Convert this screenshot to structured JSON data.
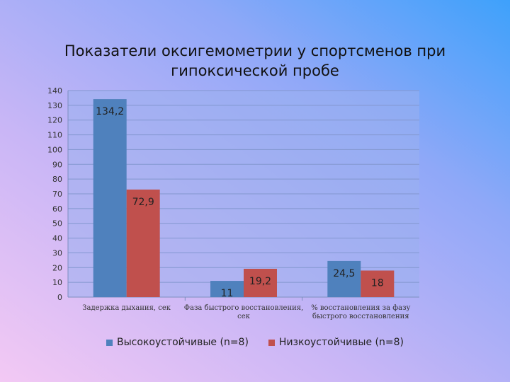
{
  "title_lines": [
    "Показатели оксигемометрии у спортсменов при",
    "гипоксической пробе"
  ],
  "colors": {
    "series1": "#4f81bd",
    "series2": "#c0504d",
    "plot_bg": "#9ab0ee",
    "grid": "#8397cf"
  },
  "chart_data": {
    "type": "bar",
    "title": "Показатели оксигемометрии у спортсменов при гипоксической пробе",
    "categories": [
      [
        "Задержка дыхания, сек"
      ],
      [
        "Фаза быстрого восстановления,",
        "сек"
      ],
      [
        "% восстановления за фазу",
        "быстрого восстановления"
      ]
    ],
    "series": [
      {
        "name": "Высокоустойчивые (n=8)",
        "values": [
          134.2,
          11,
          24.5
        ],
        "labels": [
          "134,2",
          "11",
          "24,5"
        ]
      },
      {
        "name": "Низкоустойчивые (n=8)",
        "values": [
          72.9,
          19.2,
          18
        ],
        "labels": [
          "72,9",
          "19,2",
          "18"
        ]
      }
    ],
    "ylim": [
      0,
      140
    ],
    "yticks": [
      0,
      10,
      20,
      30,
      40,
      50,
      60,
      70,
      80,
      90,
      100,
      110,
      120,
      130,
      140
    ],
    "grid": true,
    "legend": "bottom",
    "xlabel": "",
    "ylabel": ""
  }
}
